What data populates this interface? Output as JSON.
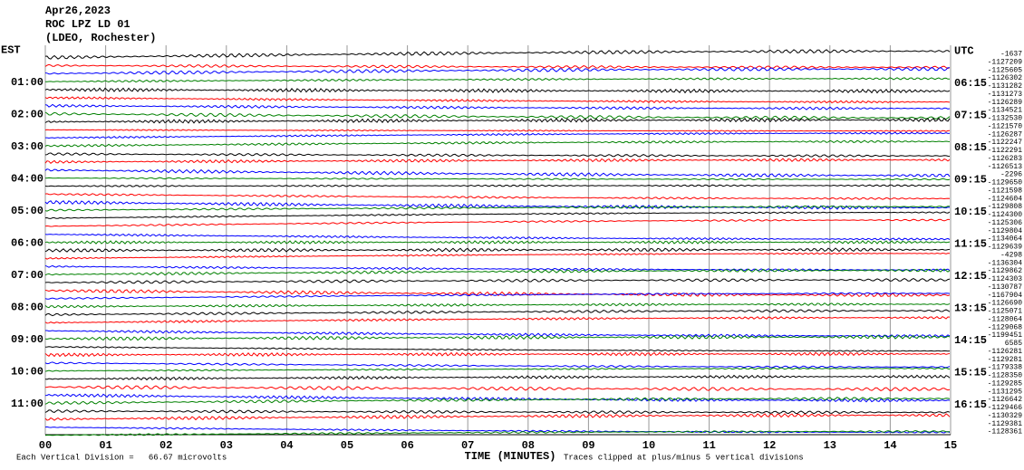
{
  "header": {
    "date": "Apr26,2023",
    "station": "ROC LPZ LD 01",
    "network": "(LDEO, Rochester)"
  },
  "left_labels": [
    "EST",
    "01:00",
    "02:00",
    "03:00",
    "04:00",
    "05:00",
    "06:00",
    "07:00",
    "08:00",
    "09:00",
    "10:00",
    "11:00"
  ],
  "right_labels": [
    "UTC",
    "06:15",
    "07:15",
    "08:15",
    "09:15",
    "10:15",
    "11:15",
    "12:15",
    "13:15",
    "14:15",
    "15:15",
    "16:15"
  ],
  "trace_values": [
    -1637,
    -1127209,
    -1125605,
    -1126302,
    -1131282,
    -1131273,
    -1126289,
    -1134521,
    -1132530,
    -1121570,
    -1126287,
    -1122247,
    -1122291,
    -1126283,
    -1126513,
    -2296,
    -1129650,
    -1121598,
    -1124604,
    -1129808,
    -1124300,
    -1125306,
    -1129804,
    -1134064,
    -1129639,
    -4298,
    -1136304,
    -1129862,
    -1124303,
    -1130787,
    -1167904,
    -1126690,
    -1125071,
    -1128064,
    -1129068,
    -1199451,
    6585,
    -1126281,
    -1129281,
    -1179338,
    -1128350,
    -1129285,
    -1131295,
    -1126642,
    -1129466,
    -1130329,
    -1129381,
    -1128361
  ],
  "trace_colors": [
    "#000000",
    "#ff0000",
    "#0000ff",
    "#008000"
  ],
  "x_ticks": [
    "00",
    "01",
    "02",
    "03",
    "04",
    "05",
    "06",
    "07",
    "08",
    "09",
    "10",
    "11",
    "12",
    "13",
    "14",
    "15"
  ],
  "x_label": "TIME (MINUTES)",
  "footer_left": "Each Vertical Division =   66.67 microvolts",
  "footer_right": "Traces clipped at plus/minus 5 vertical divisions"
}
